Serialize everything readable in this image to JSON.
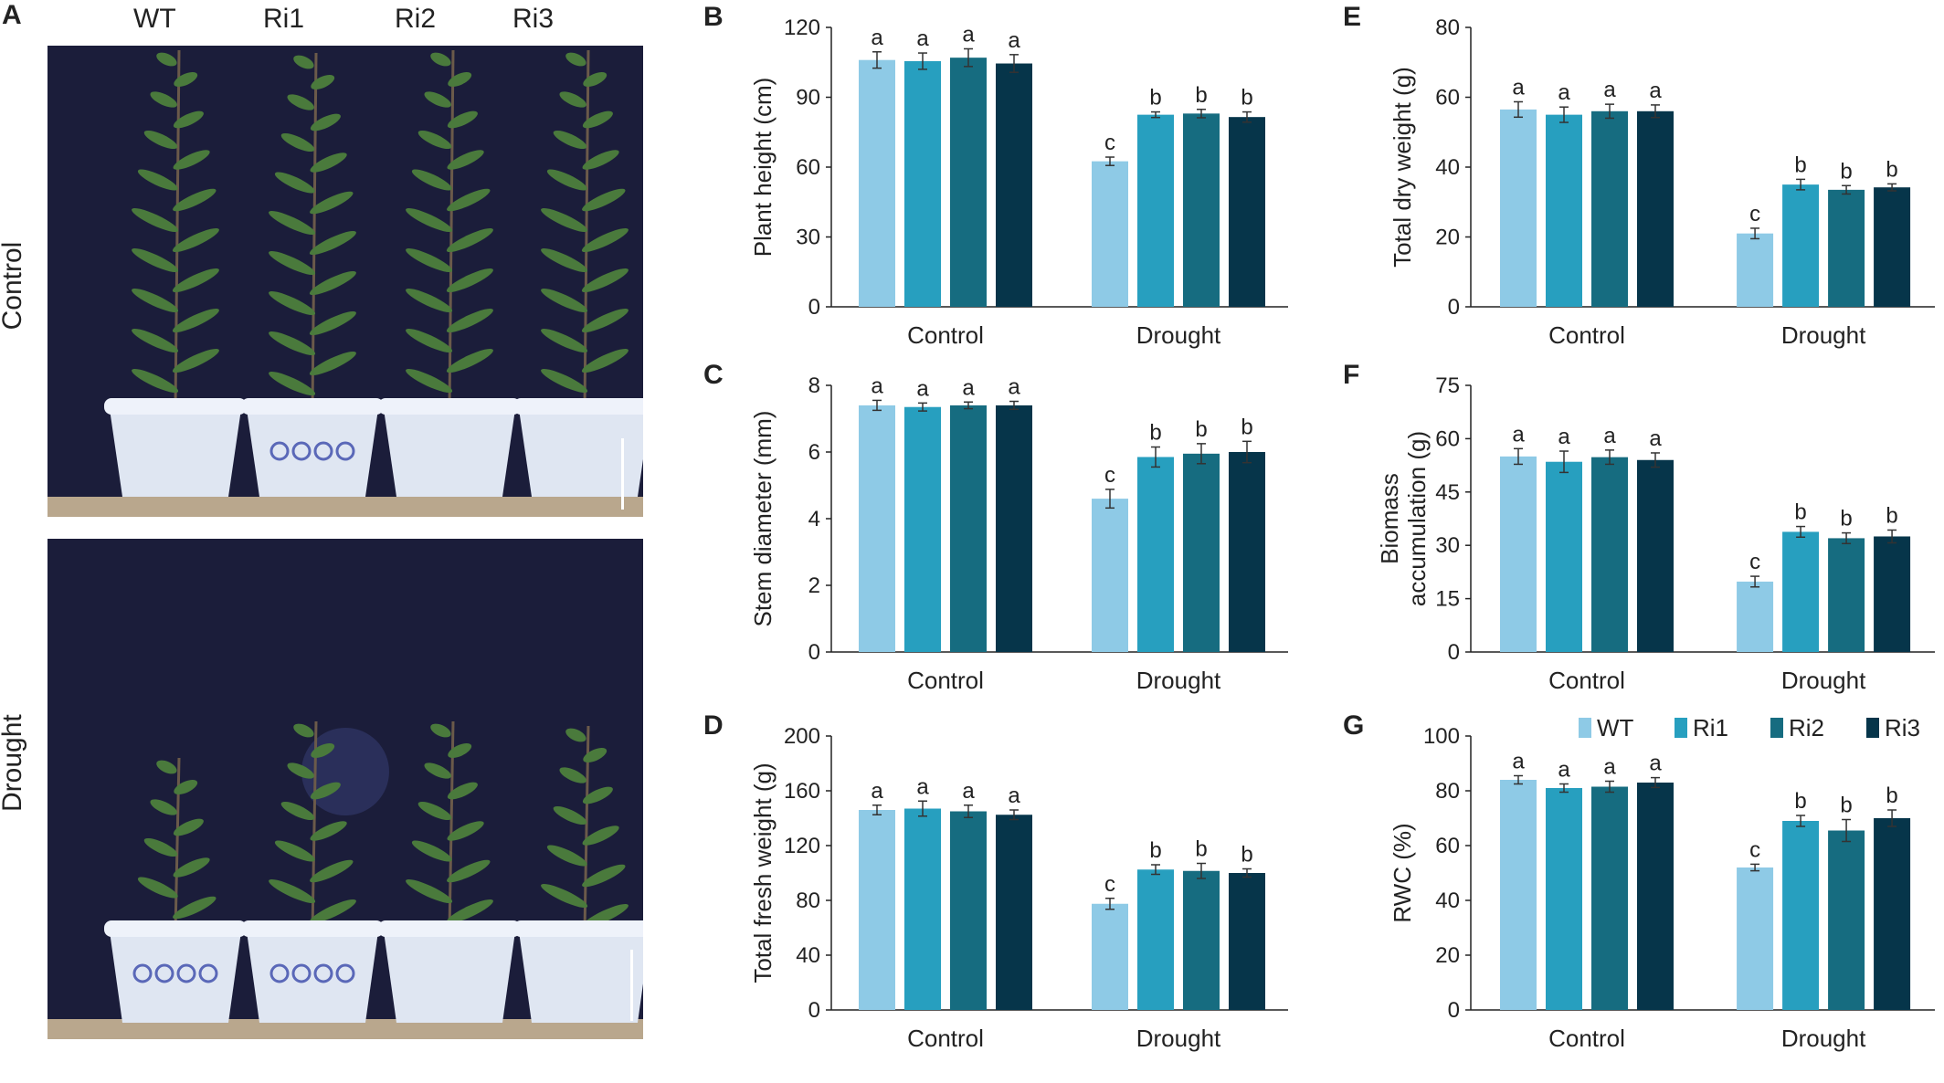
{
  "photo_panel": {
    "letter": "A",
    "genotypes": [
      "WT",
      "Ri1",
      "Ri2",
      "Ri3"
    ],
    "rows": [
      "Control",
      "Drought"
    ]
  },
  "colors": {
    "WT": "#8ecae6",
    "Ri1": "#279fbf",
    "Ri2": "#166c80",
    "Ri3": "#06354a",
    "backdrop": "#1b1d3a",
    "pot": "#dfe6f2",
    "pot_pattern": "#5a68b8",
    "leaf": "#4a7a3c",
    "ground": "#b9a78d"
  },
  "legend": [
    "WT",
    "Ri1",
    "Ri2",
    "Ri3"
  ],
  "chart_data": [
    {
      "panel": "B",
      "type": "bar",
      "categories": [
        "Control",
        "Drought"
      ],
      "ylabel": [
        "Plant height (cm)"
      ],
      "ylim": [
        0,
        120
      ],
      "yticks": [
        0,
        30,
        60,
        90,
        120
      ],
      "series": [
        {
          "name": "WT",
          "values": [
            106,
            62.5
          ],
          "errors": [
            3.5,
            1.8
          ],
          "letters": [
            "a",
            "c"
          ]
        },
        {
          "name": "Ri1",
          "values": [
            105.5,
            82.5
          ],
          "errors": [
            3.5,
            1.2
          ],
          "letters": [
            "a",
            "b"
          ]
        },
        {
          "name": "Ri2",
          "values": [
            107,
            83
          ],
          "errors": [
            3.8,
            1.8
          ],
          "letters": [
            "a",
            "b"
          ]
        },
        {
          "name": "Ri3",
          "values": [
            104.5,
            81.5
          ],
          "errors": [
            3.8,
            2.2
          ],
          "letters": [
            "a",
            "b"
          ]
        }
      ]
    },
    {
      "panel": "C",
      "type": "bar",
      "categories": [
        "Control",
        "Drought"
      ],
      "ylabel": [
        "Stem diameter (mm)"
      ],
      "ylim": [
        0,
        8
      ],
      "yticks": [
        0,
        2,
        4,
        6,
        8
      ],
      "series": [
        {
          "name": "WT",
          "values": [
            7.4,
            4.6
          ],
          "errors": [
            0.15,
            0.28
          ],
          "letters": [
            "a",
            "c"
          ]
        },
        {
          "name": "Ri1",
          "values": [
            7.35,
            5.85
          ],
          "errors": [
            0.12,
            0.3
          ],
          "letters": [
            "a",
            "b"
          ]
        },
        {
          "name": "Ri2",
          "values": [
            7.4,
            5.95
          ],
          "errors": [
            0.1,
            0.3
          ],
          "letters": [
            "a",
            "b"
          ]
        },
        {
          "name": "Ri3",
          "values": [
            7.4,
            6.0
          ],
          "errors": [
            0.12,
            0.32
          ],
          "letters": [
            "a",
            "b"
          ]
        }
      ]
    },
    {
      "panel": "D",
      "type": "bar",
      "categories": [
        "Control",
        "Drought"
      ],
      "ylabel": [
        "Total fresh weight (g)"
      ],
      "ylim": [
        0,
        200
      ],
      "yticks": [
        0,
        40,
        80,
        120,
        160,
        200
      ],
      "series": [
        {
          "name": "WT",
          "values": [
            146,
            77.5
          ],
          "errors": [
            3.5,
            4.0
          ],
          "letters": [
            "a",
            "c"
          ]
        },
        {
          "name": "Ri1",
          "values": [
            147,
            102.5
          ],
          "errors": [
            5.5,
            3.5
          ],
          "letters": [
            "a",
            "b"
          ]
        },
        {
          "name": "Ri2",
          "values": [
            145,
            101.5
          ],
          "errors": [
            4.5,
            5.5
          ],
          "letters": [
            "a",
            "b"
          ]
        },
        {
          "name": "Ri3",
          "values": [
            142.5,
            100
          ],
          "errors": [
            3.5,
            3.0
          ],
          "letters": [
            "a",
            "b"
          ]
        }
      ]
    },
    {
      "panel": "E",
      "type": "bar",
      "categories": [
        "Control",
        "Drought"
      ],
      "ylabel": [
        "Total dry weight (g)"
      ],
      "ylim": [
        0,
        80
      ],
      "yticks": [
        0,
        20,
        40,
        60,
        80
      ],
      "series": [
        {
          "name": "WT",
          "values": [
            56.5,
            21
          ],
          "errors": [
            2.2,
            1.5
          ],
          "letters": [
            "a",
            "c"
          ]
        },
        {
          "name": "Ri1",
          "values": [
            55,
            35
          ],
          "errors": [
            2.2,
            1.5
          ],
          "letters": [
            "a",
            "b"
          ]
        },
        {
          "name": "Ri2",
          "values": [
            56,
            33.5
          ],
          "errors": [
            2.0,
            1.2
          ],
          "letters": [
            "a",
            "b"
          ]
        },
        {
          "name": "Ri3",
          "values": [
            56,
            34.2
          ],
          "errors": [
            1.8,
            1.0
          ],
          "letters": [
            "a",
            "b"
          ]
        }
      ]
    },
    {
      "panel": "F",
      "type": "bar",
      "categories": [
        "Control",
        "Drought"
      ],
      "ylabel": [
        "Biomass",
        "accumulation (g)"
      ],
      "ylim": [
        0,
        75
      ],
      "yticks": [
        0,
        15,
        30,
        45,
        60,
        75
      ],
      "series": [
        {
          "name": "WT",
          "values": [
            55,
            19.8
          ],
          "errors": [
            2.2,
            1.5
          ],
          "letters": [
            "a",
            "c"
          ]
        },
        {
          "name": "Ri1",
          "values": [
            53.5,
            33.8
          ],
          "errors": [
            3.0,
            1.5
          ],
          "letters": [
            "a",
            "b"
          ]
        },
        {
          "name": "Ri2",
          "values": [
            54.8,
            32
          ],
          "errors": [
            2.0,
            1.5
          ],
          "letters": [
            "a",
            "b"
          ]
        },
        {
          "name": "Ri3",
          "values": [
            54,
            32.5
          ],
          "errors": [
            2.0,
            1.8
          ],
          "letters": [
            "a",
            "b"
          ]
        }
      ]
    },
    {
      "panel": "G",
      "type": "bar",
      "categories": [
        "Control",
        "Drought"
      ],
      "ylabel": [
        "RWC (%)"
      ],
      "ylim": [
        0,
        100
      ],
      "yticks": [
        0,
        20,
        40,
        60,
        80,
        100
      ],
      "series": [
        {
          "name": "WT",
          "values": [
            84,
            52
          ],
          "errors": [
            1.5,
            1.2
          ],
          "letters": [
            "a",
            "c"
          ]
        },
        {
          "name": "Ri1",
          "values": [
            81,
            69
          ],
          "errors": [
            1.5,
            2.0
          ],
          "letters": [
            "a",
            "b"
          ]
        },
        {
          "name": "Ri2",
          "values": [
            81.5,
            65.5
          ],
          "errors": [
            2.0,
            4.0
          ],
          "letters": [
            "a",
            "b"
          ]
        },
        {
          "name": "Ri3",
          "values": [
            83,
            70
          ],
          "errors": [
            1.8,
            3.0
          ],
          "letters": [
            "a",
            "b"
          ]
        }
      ]
    }
  ]
}
